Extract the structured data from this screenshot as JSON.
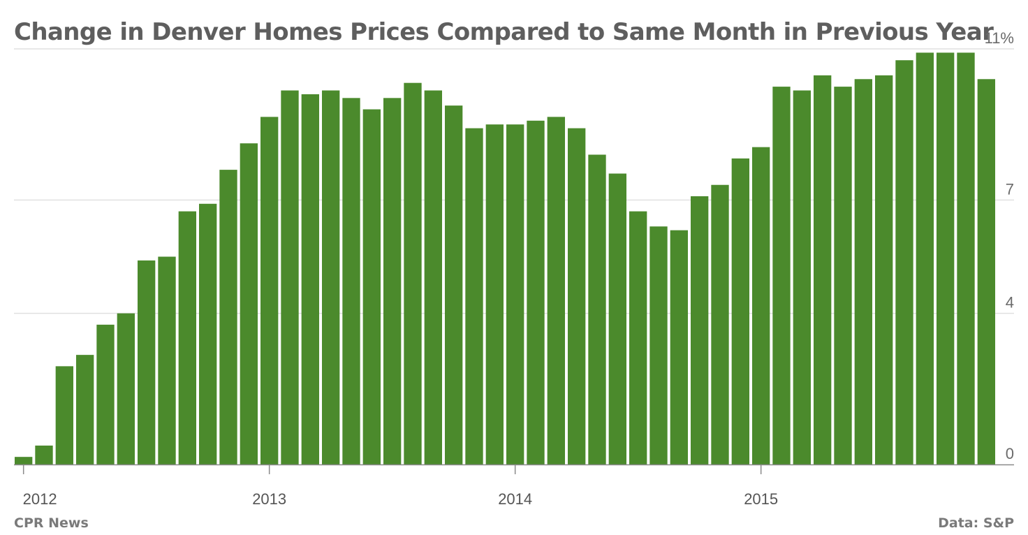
{
  "title": "Change in Denver Homes Prices Compared to Same Month in Previous Year",
  "footer": {
    "source_left": "CPR News",
    "source_right": "Data: S&P"
  },
  "chart_data": {
    "type": "bar",
    "title": "Change in Denver Homes Prices Compared to Same Month in Previous Year",
    "xlabel": "",
    "ylabel": "",
    "ylim": [
      0,
      11
    ],
    "y_ticks": [
      {
        "value": 0,
        "label": "0"
      },
      {
        "value": 4,
        "label": "4"
      },
      {
        "value": 7,
        "label": "7"
      },
      {
        "value": 11,
        "label": "11%"
      }
    ],
    "x_tick_labels": [
      {
        "index": 0,
        "label": "2012"
      },
      {
        "index": 12,
        "label": "2013"
      },
      {
        "index": 24,
        "label": "2014"
      },
      {
        "index": 36,
        "label": "2015"
      }
    ],
    "grid": true,
    "y_axis_position": "right",
    "bar_color": "#4b8a2c",
    "categories": [
      "2012-01",
      "2012-02",
      "2012-03",
      "2012-04",
      "2012-05",
      "2012-06",
      "2012-07",
      "2012-08",
      "2012-09",
      "2012-10",
      "2012-11",
      "2012-12",
      "2013-01",
      "2013-02",
      "2013-03",
      "2013-04",
      "2013-05",
      "2013-06",
      "2013-07",
      "2013-08",
      "2013-09",
      "2013-10",
      "2013-11",
      "2013-12",
      "2014-01",
      "2014-02",
      "2014-03",
      "2014-04",
      "2014-05",
      "2014-06",
      "2014-07",
      "2014-08",
      "2014-09",
      "2014-10",
      "2014-11",
      "2014-12",
      "2015-01",
      "2015-02",
      "2015-03",
      "2015-04",
      "2015-05",
      "2015-06",
      "2015-07",
      "2015-08",
      "2015-09",
      "2015-10",
      "2015-11",
      "2015-12"
    ],
    "values": [
      0.2,
      0.5,
      2.6,
      2.9,
      3.7,
      4.0,
      5.4,
      5.5,
      6.7,
      6.9,
      7.8,
      8.5,
      9.2,
      9.9,
      9.8,
      9.9,
      9.7,
      9.4,
      9.7,
      10.1,
      9.9,
      9.5,
      8.9,
      9.0,
      9.0,
      9.1,
      9.2,
      8.9,
      8.2,
      7.7,
      6.7,
      6.3,
      6.2,
      7.1,
      7.4,
      8.1,
      8.4,
      10.0,
      9.9,
      10.3,
      10.0,
      10.2,
      10.3,
      10.7,
      10.9,
      10.9,
      10.9,
      10.2
    ]
  }
}
